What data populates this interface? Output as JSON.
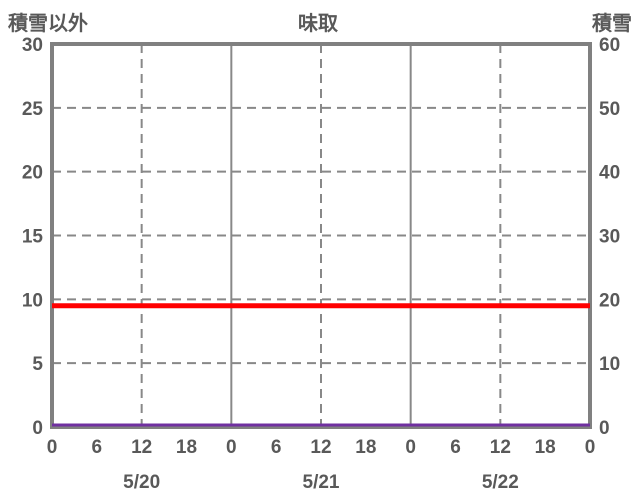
{
  "header": {
    "left_axis_title": "積雪以外",
    "station_title": "味取",
    "right_axis_title": "積雪"
  },
  "chart_data": {
    "type": "line",
    "title": "味取",
    "left_axis": {
      "label": "積雪以外",
      "ylim": [
        0,
        30
      ],
      "ticks": [
        30,
        25,
        20,
        15,
        10,
        5,
        0
      ],
      "tick_labels": [
        "30",
        "25",
        "20",
        "15",
        "10",
        "5",
        "0"
      ]
    },
    "right_axis": {
      "label": "積雪",
      "ylim": [
        0,
        60
      ],
      "ticks": [
        60,
        50,
        40,
        30,
        20,
        10,
        0
      ],
      "tick_labels": [
        "60",
        "50",
        "40",
        "30",
        "20",
        "10",
        "0"
      ]
    },
    "x_axis": {
      "unit": "hour",
      "range_hours": [
        0,
        72
      ],
      "tick_hours": [
        0,
        6,
        12,
        18,
        24,
        30,
        36,
        42,
        48,
        54,
        60,
        66,
        72
      ],
      "tick_labels": [
        "0",
        "6",
        "12",
        "18",
        "0",
        "6",
        "12",
        "18",
        "0",
        "6",
        "12",
        "18",
        "0"
      ],
      "date_labels": [
        "5/20",
        "5/21",
        "5/22"
      ],
      "date_center_hours": [
        12,
        36,
        60
      ]
    },
    "grid": {
      "visible": true,
      "h_dashed_values_left": [
        25,
        20,
        15,
        10,
        5
      ],
      "v_dashed_hours": [
        12,
        36,
        60
      ],
      "v_solid_hours": [
        24,
        48
      ]
    },
    "series": [
      {
        "name": "積雪以外",
        "axis": "left",
        "color": "#ff0000",
        "stroke_width": 5,
        "x_hours": [
          0,
          6,
          12,
          18,
          24,
          30,
          36,
          42,
          48,
          54,
          60,
          66,
          72
        ],
        "values": [
          9.5,
          9.5,
          9.5,
          9.5,
          9.5,
          9.5,
          9.5,
          9.5,
          9.5,
          9.5,
          9.5,
          9.5,
          9.5
        ]
      },
      {
        "name": "積雪",
        "axis": "right",
        "color": "#7030a0",
        "stroke_width": 3,
        "x_hours": [
          0,
          6,
          12,
          18,
          24,
          30,
          36,
          42,
          48,
          54,
          60,
          66,
          72
        ],
        "values": [
          0,
          0,
          0,
          0,
          0,
          0,
          0,
          0,
          0,
          0,
          0,
          0,
          0
        ]
      }
    ],
    "colors": {
      "border": "#808080",
      "grid": "#888888",
      "text": "#595959",
      "background": "#ffffff"
    },
    "legend_position": "none"
  }
}
